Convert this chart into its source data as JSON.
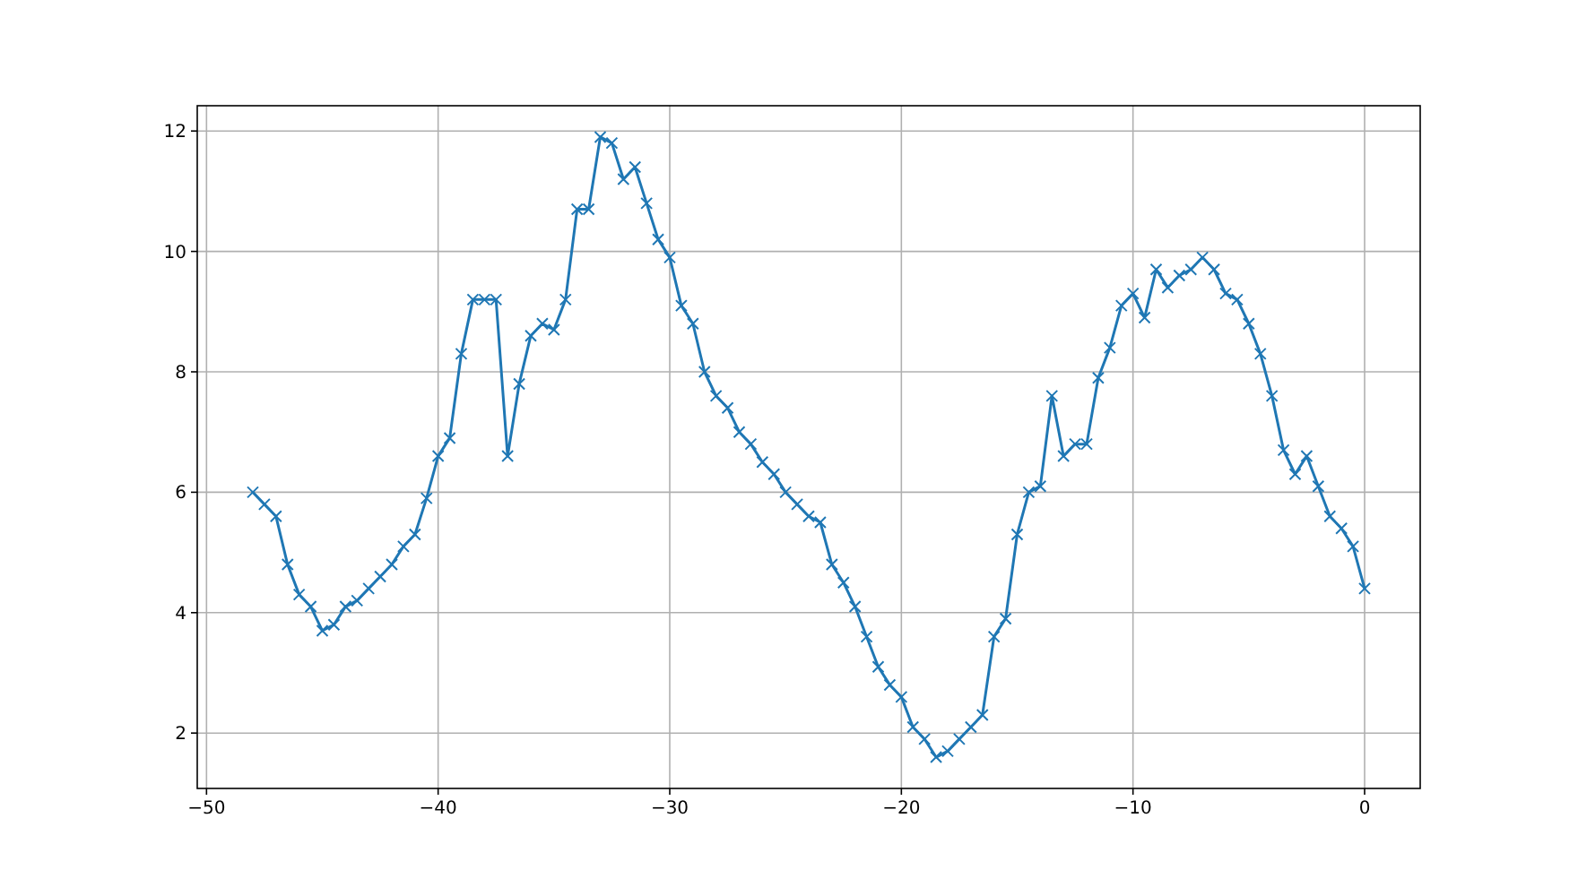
{
  "chart_data": {
    "type": "line",
    "x": [
      -48,
      -47.5,
      -47,
      -46.5,
      -46,
      -45.5,
      -45,
      -44.5,
      -44,
      -43.5,
      -43,
      -42.5,
      -42,
      -41.5,
      -41,
      -40.5,
      -40,
      -39.5,
      -39,
      -38.5,
      -38,
      -37.5,
      -37,
      -36.5,
      -36,
      -35.5,
      -35,
      -34.5,
      -34,
      -33.5,
      -33,
      -32.5,
      -32,
      -31.5,
      -31,
      -30.5,
      -30,
      -29.5,
      -29,
      -28.5,
      -28,
      -27.5,
      -27,
      -26.5,
      -26,
      -25.5,
      -25,
      -24.5,
      -24,
      -23.5,
      -23,
      -22.5,
      -22,
      -21.5,
      -21,
      -20.5,
      -20,
      -19.5,
      -19,
      -18.5,
      -18,
      -17.5,
      -17,
      -16.5,
      -16,
      -15.5,
      -15,
      -14.5,
      -14,
      -13.5,
      -13,
      -12.5,
      -12,
      -11.5,
      -11,
      -10.5,
      -10,
      -9.5,
      -9,
      -8.5,
      -8,
      -7.5,
      -7,
      -6.5,
      -6,
      -5.5,
      -5,
      -4.5,
      -4,
      -3.5,
      -3,
      -2.5,
      -2,
      -1.5,
      -1,
      -0.5,
      0
    ],
    "series": [
      {
        "color": "#1f77b4",
        "values": [
          6.0,
          5.8,
          5.6,
          4.8,
          4.3,
          4.1,
          3.7,
          3.8,
          4.1,
          4.2,
          4.4,
          4.6,
          4.8,
          5.1,
          5.3,
          5.9,
          6.6,
          6.9,
          8.3,
          9.2,
          9.2,
          9.2,
          6.6,
          7.8,
          8.6,
          8.8,
          8.7,
          9.2,
          10.7,
          10.7,
          11.9,
          11.8,
          11.2,
          11.4,
          10.8,
          10.2,
          9.9,
          9.1,
          8.8,
          8.0,
          7.6,
          7.4,
          7.0,
          6.8,
          6.5,
          6.3,
          6.0,
          5.8,
          5.6,
          5.5,
          4.8,
          4.5,
          4.1,
          3.6,
          3.1,
          2.8,
          2.6,
          2.1,
          1.9,
          1.6,
          1.7,
          1.9,
          2.1,
          2.3,
          3.6,
          3.9,
          5.3,
          6.0,
          6.1,
          7.6,
          6.6,
          6.8,
          6.8,
          7.9,
          8.4,
          9.1,
          9.3,
          8.9,
          9.7,
          9.4,
          9.6,
          9.7,
          9.9,
          9.7,
          9.3,
          9.2,
          8.8,
          8.3,
          7.6,
          6.7,
          6.3,
          6.6,
          6.1,
          5.6,
          5.4,
          5.1,
          4.4
        ]
      }
    ],
    "xlim": [
      -50.4,
      2.4
    ],
    "ylim": [
      1.08,
      12.42
    ],
    "xticks": [
      -50,
      -40,
      -30,
      -20,
      -10,
      0
    ],
    "yticks": [
      2,
      4,
      6,
      8,
      10,
      12
    ],
    "grid": true,
    "marker": "cross",
    "line_style": "solid"
  }
}
